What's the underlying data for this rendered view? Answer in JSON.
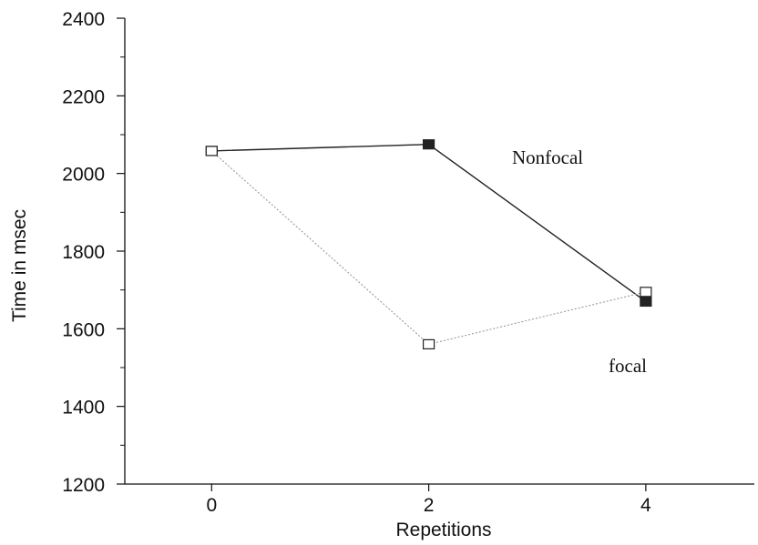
{
  "chart_data": {
    "type": "line",
    "xlabel": "Repetitions",
    "ylabel": "Time in msec",
    "xlim": [
      -0.8,
      5
    ],
    "ylim": [
      1200,
      2400
    ],
    "xticks": [
      "0",
      "2",
      "4"
    ],
    "yticks": [
      "1200",
      "1400",
      "1600",
      "1800",
      "2000",
      "2200",
      "2400"
    ],
    "grid": false,
    "series": [
      {
        "name": "Nonfocal",
        "x": [
          0,
          2,
          4
        ],
        "values": [
          2058,
          2075,
          1670
        ],
        "marker": "filled-square",
        "color": "#222222"
      },
      {
        "name": "focal",
        "x": [
          0,
          2,
          4
        ],
        "values": [
          2058,
          1560,
          1695
        ],
        "marker": "open-square",
        "color": "#9a9a9a"
      }
    ]
  }
}
